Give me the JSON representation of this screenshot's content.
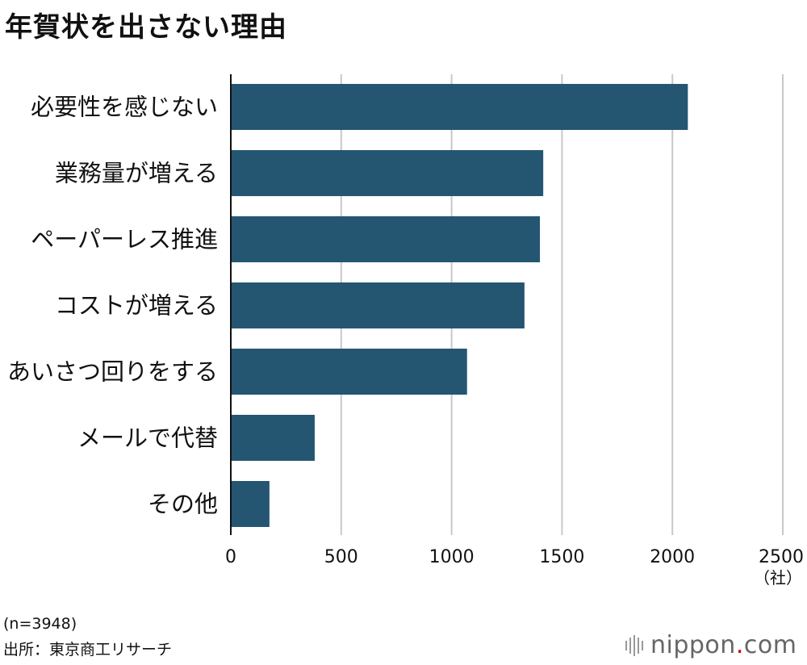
{
  "title": "年賀状を出さない理由",
  "colors": {
    "bar": "#245672",
    "grid": "#c8c8c8",
    "axis": "#111111"
  },
  "chart_data": {
    "type": "bar",
    "orientation": "horizontal",
    "categories": [
      "必要性を感じない",
      "業務量が増える",
      "ペーパーレス推進",
      "コストが増える",
      "あいさつ回りをする",
      "メールで代替",
      "その他"
    ],
    "values": [
      2070,
      1415,
      1400,
      1330,
      1070,
      380,
      175
    ],
    "xlim": [
      0,
      2500
    ],
    "xticks": [
      0,
      500,
      1000,
      1500,
      2000,
      2500
    ],
    "x_unit": "（社）",
    "grid": true
  },
  "footer": {
    "n": "(n=3948)",
    "source": "出所：東京商工リサーチ"
  },
  "logo": {
    "name": "nippon",
    "dot": ".",
    "suffix": "com",
    "icon": "nippon-logo-bars-icon"
  }
}
